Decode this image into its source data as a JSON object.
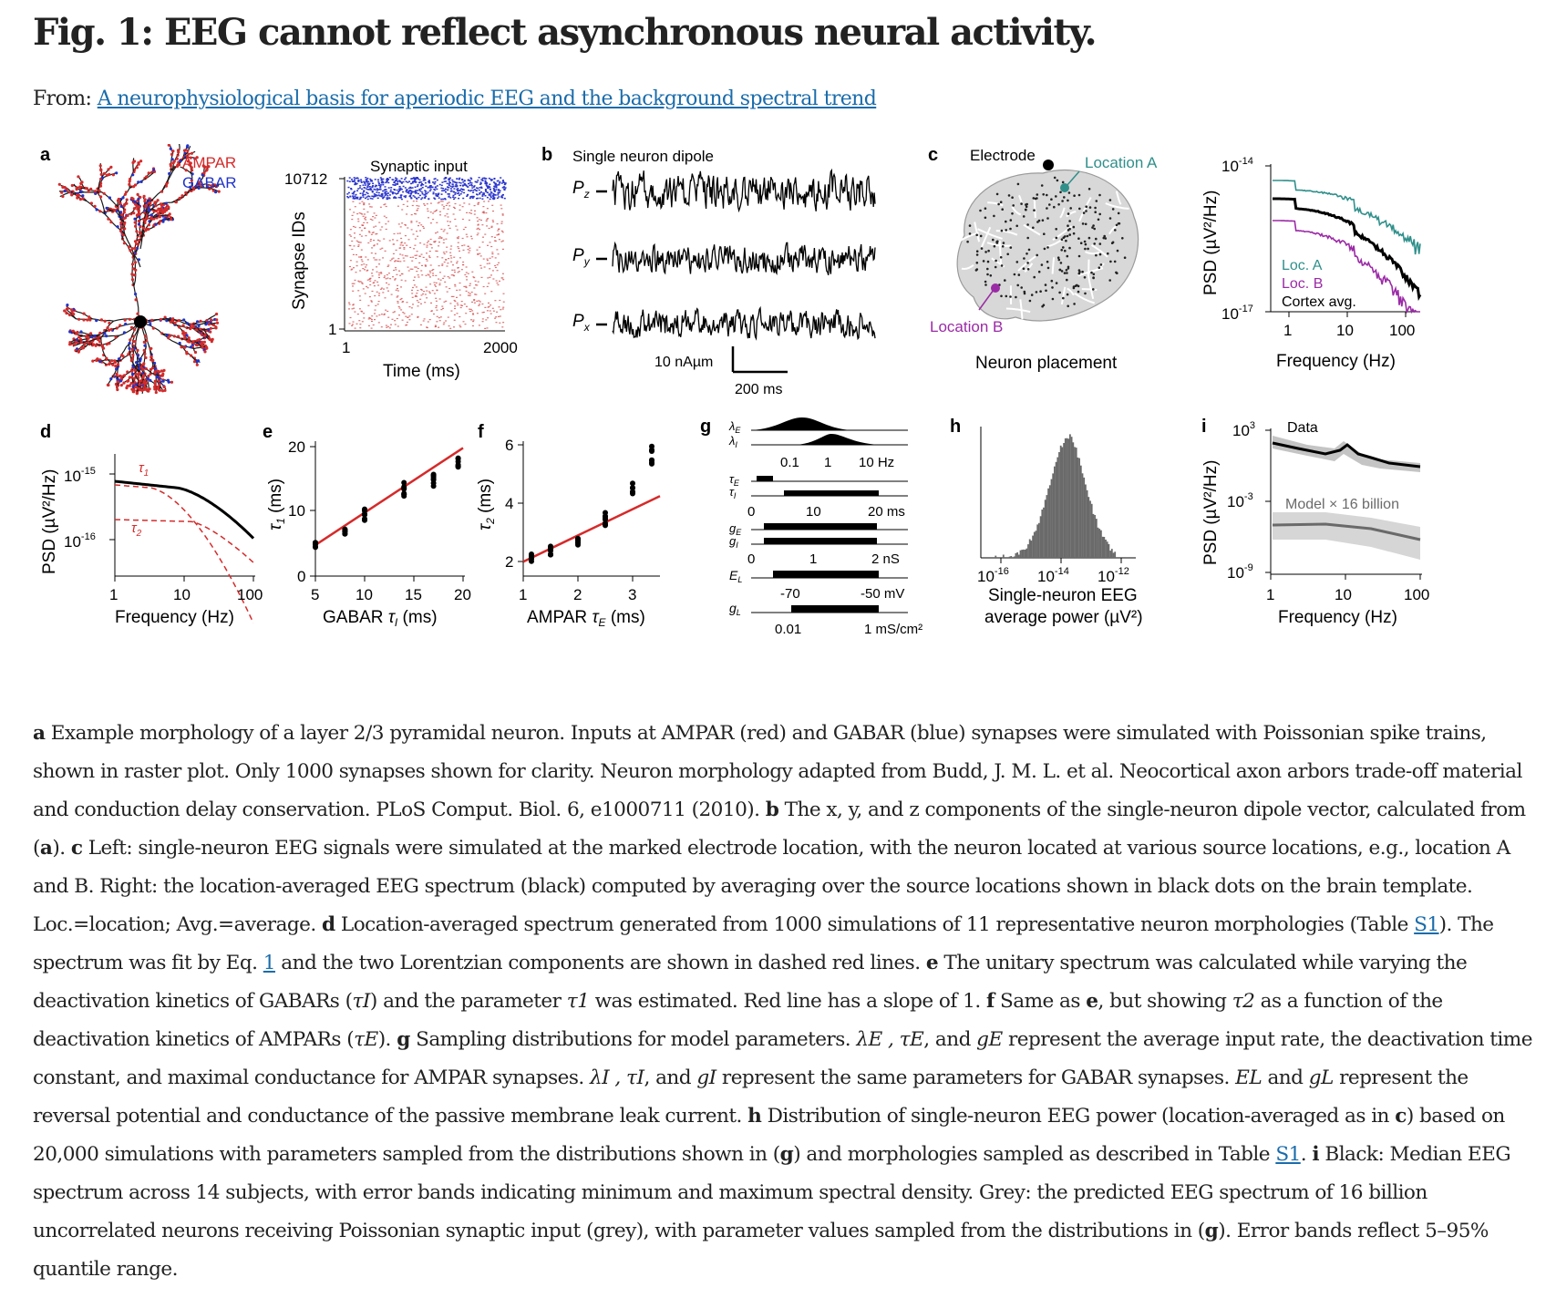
{
  "title": "Fig. 1: EEG cannot reflect asynchronous neural activity.",
  "from_label": "From:",
  "source_link": "A neurophysiological basis for aperiodic EEG and the background spectral trend",
  "figure": {
    "panel_letters": [
      "a",
      "b",
      "c",
      "d",
      "e",
      "f",
      "g",
      "h",
      "i"
    ],
    "a": {
      "legend_ampar": "AMPAR",
      "legend_gabar": "GABAR",
      "raster_title": "Synaptic input",
      "raster_ylabel": "Synapse IDs",
      "raster_ytop": "10712",
      "raster_ybottom": "1",
      "raster_xleft": "1",
      "raster_xright": "2000",
      "raster_xlabel": "Time (ms)"
    },
    "b": {
      "title": "Single neuron dipole",
      "traces": [
        "Pz",
        "Py",
        "Px"
      ],
      "trace_labels": {
        "z": "z",
        "y": "y",
        "x": "x"
      },
      "scale_y": "10 nAµm",
      "scale_x": "200 ms"
    },
    "c": {
      "electrode": "Electrode",
      "location_a": "Location A",
      "location_b": "Location B",
      "caption": "Neuron placement",
      "spec_ylabel": "PSD (µV²/Hz)",
      "spec_ytop_base": "10",
      "spec_ytop_exp": "-14",
      "spec_ybottom_base": "10",
      "spec_ybottom_exp": "-17",
      "spec_xticks": [
        "1",
        "10",
        "100"
      ],
      "spec_xlabel": "Frequency (Hz)",
      "legend": [
        "Loc. A",
        "Loc. B",
        "Cortex avg."
      ],
      "colors": {
        "loc_a": "#2f8f8a",
        "loc_b": "#9b2aa6",
        "avg": "#000000"
      }
    },
    "d": {
      "ylabel": "PSD (µV²/Hz)",
      "ytick_top_base": "10",
      "ytick_top_exp": "-15",
      "ytick_bottom_base": "10",
      "ytick_bottom_exp": "-16",
      "xticks": [
        "1",
        "10",
        "100"
      ],
      "xlabel": "Frequency (Hz)",
      "tau1": "τ",
      "tau1_sub": "1",
      "tau2": "τ",
      "tau2_sub": "2"
    },
    "e": {
      "yticks": [
        "0",
        "10",
        "20"
      ],
      "xticks": [
        "5",
        "10",
        "15",
        "20"
      ],
      "ylabel": "τ",
      "ylabel_sub": "1",
      "ylabel_unit": " (ms)",
      "xlabel_pre": "GABAR ",
      "xlabel_tau": "τ",
      "xlabel_sub": "I",
      "xlabel_unit": " (ms)",
      "chart_data": {
        "type": "scatter",
        "x": [
          5,
          8,
          10,
          14,
          17,
          19.5
        ],
        "y": [
          4.8,
          6.5,
          9.5,
          13.5,
          15,
          18
        ],
        "fit_slope": 1,
        "xlim": [
          5,
          20
        ],
        "ylim": [
          0,
          20
        ]
      }
    },
    "f": {
      "yticks": [
        "2",
        "4",
        "6"
      ],
      "xticks": [
        "1",
        "2",
        "3"
      ],
      "ylabel": "τ",
      "ylabel_sub": "2",
      "ylabel_unit": " (ms)",
      "xlabel_pre": "AMPAR ",
      "xlabel_tau": "τ",
      "xlabel_sub": "E",
      "xlabel_unit": " (ms)",
      "chart_data": {
        "type": "scatter",
        "x": [
          1.15,
          1.5,
          2,
          2.5,
          3,
          3.35
        ],
        "y": [
          2.2,
          2.5,
          2.9,
          3.7,
          4.9,
          6.1
        ],
        "fit_slope": 1,
        "xlim": [
          1,
          3.5
        ],
        "ylim": [
          1.5,
          6.5
        ]
      }
    },
    "g": {
      "lambda_labels": [
        "λ",
        "λ"
      ],
      "lambda_subs": [
        "E",
        "I"
      ],
      "lambda_ticks": [
        "0.1",
        "1",
        "10 Hz"
      ],
      "tau_labels": [
        "τ",
        "τ"
      ],
      "tau_subs": [
        "E",
        "I"
      ],
      "tau_ticks": [
        "0",
        "10",
        "20 ms"
      ],
      "g_labels": [
        "g",
        "g"
      ],
      "g_subs": [
        "E",
        "I"
      ],
      "g_ticks": [
        "0",
        "1",
        "2  nS"
      ],
      "el_label": "E",
      "el_sub": "L",
      "el_ticks": [
        "-70",
        "-50 mV"
      ],
      "gl_label": "g",
      "gl_sub": "L",
      "gl_ticks": [
        "0.01",
        "1 mS/cm²"
      ]
    },
    "h": {
      "xticks_base": [
        "10",
        "10",
        "10"
      ],
      "xticks_exp": [
        "-16",
        "-14",
        "-12"
      ],
      "xlabel_1": "Single-neuron EEG",
      "xlabel_2": "average power (µV²)"
    },
    "i": {
      "ylabel": "PSD (µV²/Hz)",
      "yticks_base": [
        "10",
        "10",
        "10"
      ],
      "yticks_exp": [
        "3",
        "-3",
        "-9"
      ],
      "xticks": [
        "1",
        "10",
        "100"
      ],
      "xlabel": "Frequency (Hz)",
      "data_label": "Data",
      "model_label": "Model × 16 billion"
    }
  },
  "caption": [
    {
      "t": "b",
      "v": "a"
    },
    {
      "t": "s",
      "v": " Example morphology of a layer 2/3 pyramidal neuron. Inputs at AMPAR (red) and GABAR (blue) synapses were simulated with Poissonian spike trains, shown in raster plot. Only 1000 synapses shown for clarity. Neuron morphology adapted from Budd, J. M. L. et al. Neocortical axon arbors trade-off material and conduction delay conservation. PLoS Comput. Biol. 6, e1000711 (2010). "
    },
    {
      "t": "b",
      "v": "b"
    },
    {
      "t": "s",
      "v": " The x, y, and z components of the single-neuron dipole vector, calculated from ("
    },
    {
      "t": "b",
      "v": "a"
    },
    {
      "t": "s",
      "v": "). "
    },
    {
      "t": "b",
      "v": "c"
    },
    {
      "t": "s",
      "v": " Left: single-neuron EEG signals were simulated at the marked electrode location, with the neuron located at various source locations, e.g., location A and B. Right: the location-averaged EEG spectrum (black) computed by averaging over the source locations shown in black dots on the brain template. Loc.=location; Avg.=average. "
    },
    {
      "t": "b",
      "v": "d"
    },
    {
      "t": "s",
      "v": " Location-averaged spectrum generated from 1000 simulations of 11 representative neuron morphologies (Table "
    },
    {
      "t": "a",
      "v": "S1"
    },
    {
      "t": "s",
      "v": "). The spectrum was fit by Eq. "
    },
    {
      "t": "a",
      "v": "1"
    },
    {
      "t": "s",
      "v": " and the two Lorentzian components are shown in dashed red lines. "
    },
    {
      "t": "b",
      "v": "e"
    },
    {
      "t": "s",
      "v": " The unitary spectrum was calculated while varying the deactivation kinetics of GABARs ("
    },
    {
      "t": "m",
      "v": "τI"
    },
    {
      "t": "s",
      "v": ") and the parameter "
    },
    {
      "t": "m",
      "v": "τ1"
    },
    {
      "t": "s",
      "v": " was estimated. Red line has a slope of 1. "
    },
    {
      "t": "b",
      "v": "f"
    },
    {
      "t": "s",
      "v": " Same as "
    },
    {
      "t": "b",
      "v": "e"
    },
    {
      "t": "s",
      "v": ", but showing "
    },
    {
      "t": "m",
      "v": "τ2"
    },
    {
      "t": "s",
      "v": " as a function of the deactivation kinetics of AMPARs ("
    },
    {
      "t": "m",
      "v": "τE"
    },
    {
      "t": "s",
      "v": "). "
    },
    {
      "t": "b",
      "v": "g"
    },
    {
      "t": "s",
      "v": " Sampling distributions for model parameters. "
    },
    {
      "t": "m",
      "v": "λE , τE"
    },
    {
      "t": "s",
      "v": ", and "
    },
    {
      "t": "m",
      "v": "gE"
    },
    {
      "t": "s",
      "v": " represent the average input rate, the deactivation time constant, and maximal conductance for AMPAR synapses. "
    },
    {
      "t": "m",
      "v": "λI , τI"
    },
    {
      "t": "s",
      "v": ", and "
    },
    {
      "t": "m",
      "v": "gI"
    },
    {
      "t": "s",
      "v": " represent the same parameters for GABAR synapses. "
    },
    {
      "t": "m",
      "v": "EL"
    },
    {
      "t": "s",
      "v": " and "
    },
    {
      "t": "m",
      "v": "gL"
    },
    {
      "t": "s",
      "v": " represent the reversal potential and conductance of the passive membrane leak current. "
    },
    {
      "t": "b",
      "v": "h"
    },
    {
      "t": "s",
      "v": " Distribution of single-neuron EEG power (location-averaged as in "
    },
    {
      "t": "b",
      "v": "c"
    },
    {
      "t": "s",
      "v": ") based on 20,000 simulations with parameters sampled from the distributions shown in ("
    },
    {
      "t": "b",
      "v": "g"
    },
    {
      "t": "s",
      "v": ") and morphologies sampled as described in Table "
    },
    {
      "t": "a",
      "v": "S1"
    },
    {
      "t": "s",
      "v": ". "
    },
    {
      "t": "b",
      "v": "i"
    },
    {
      "t": "s",
      "v": " Black: Median EEG spectrum across 14 subjects, with error bands indicating minimum and maximum spectral density. Grey: the predicted EEG spectrum of 16 billion uncorrelated neurons receiving Poissonian synaptic input (grey), with parameter values sampled from the distributions in ("
    },
    {
      "t": "b",
      "v": "g"
    },
    {
      "t": "s",
      "v": "). Error bands reflect 5–95% quantile range."
    }
  ]
}
